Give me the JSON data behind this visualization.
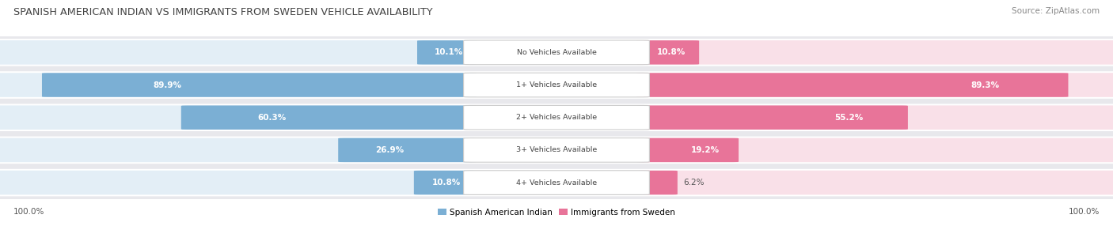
{
  "title": "SPANISH AMERICAN INDIAN VS IMMIGRANTS FROM SWEDEN VEHICLE AVAILABILITY",
  "source": "Source: ZipAtlas.com",
  "categories": [
    "No Vehicles Available",
    "1+ Vehicles Available",
    "2+ Vehicles Available",
    "3+ Vehicles Available",
    "4+ Vehicles Available"
  ],
  "left_values": [
    10.1,
    89.9,
    60.3,
    26.9,
    10.8
  ],
  "right_values": [
    10.8,
    89.3,
    55.2,
    19.2,
    6.2
  ],
  "left_label": "Spanish American Indian",
  "right_label": "Immigrants from Sweden",
  "left_color": "#7bafd4",
  "right_color": "#e87499",
  "left_color_light": "#afd0e8",
  "right_color_light": "#f0a8be",
  "row_bg": "#e8e8ec",
  "max_val": 100.0,
  "axis_label_left": "100.0%",
  "axis_label_right": "100.0%",
  "bg_color": "#ffffff",
  "title_color": "#444444",
  "source_color": "#888888",
  "label_dark": "#ffffff",
  "label_light": "#555555",
  "center_label_color": "#444444",
  "center_box_color": "#ffffff",
  "center_box_edge": "#cccccc"
}
